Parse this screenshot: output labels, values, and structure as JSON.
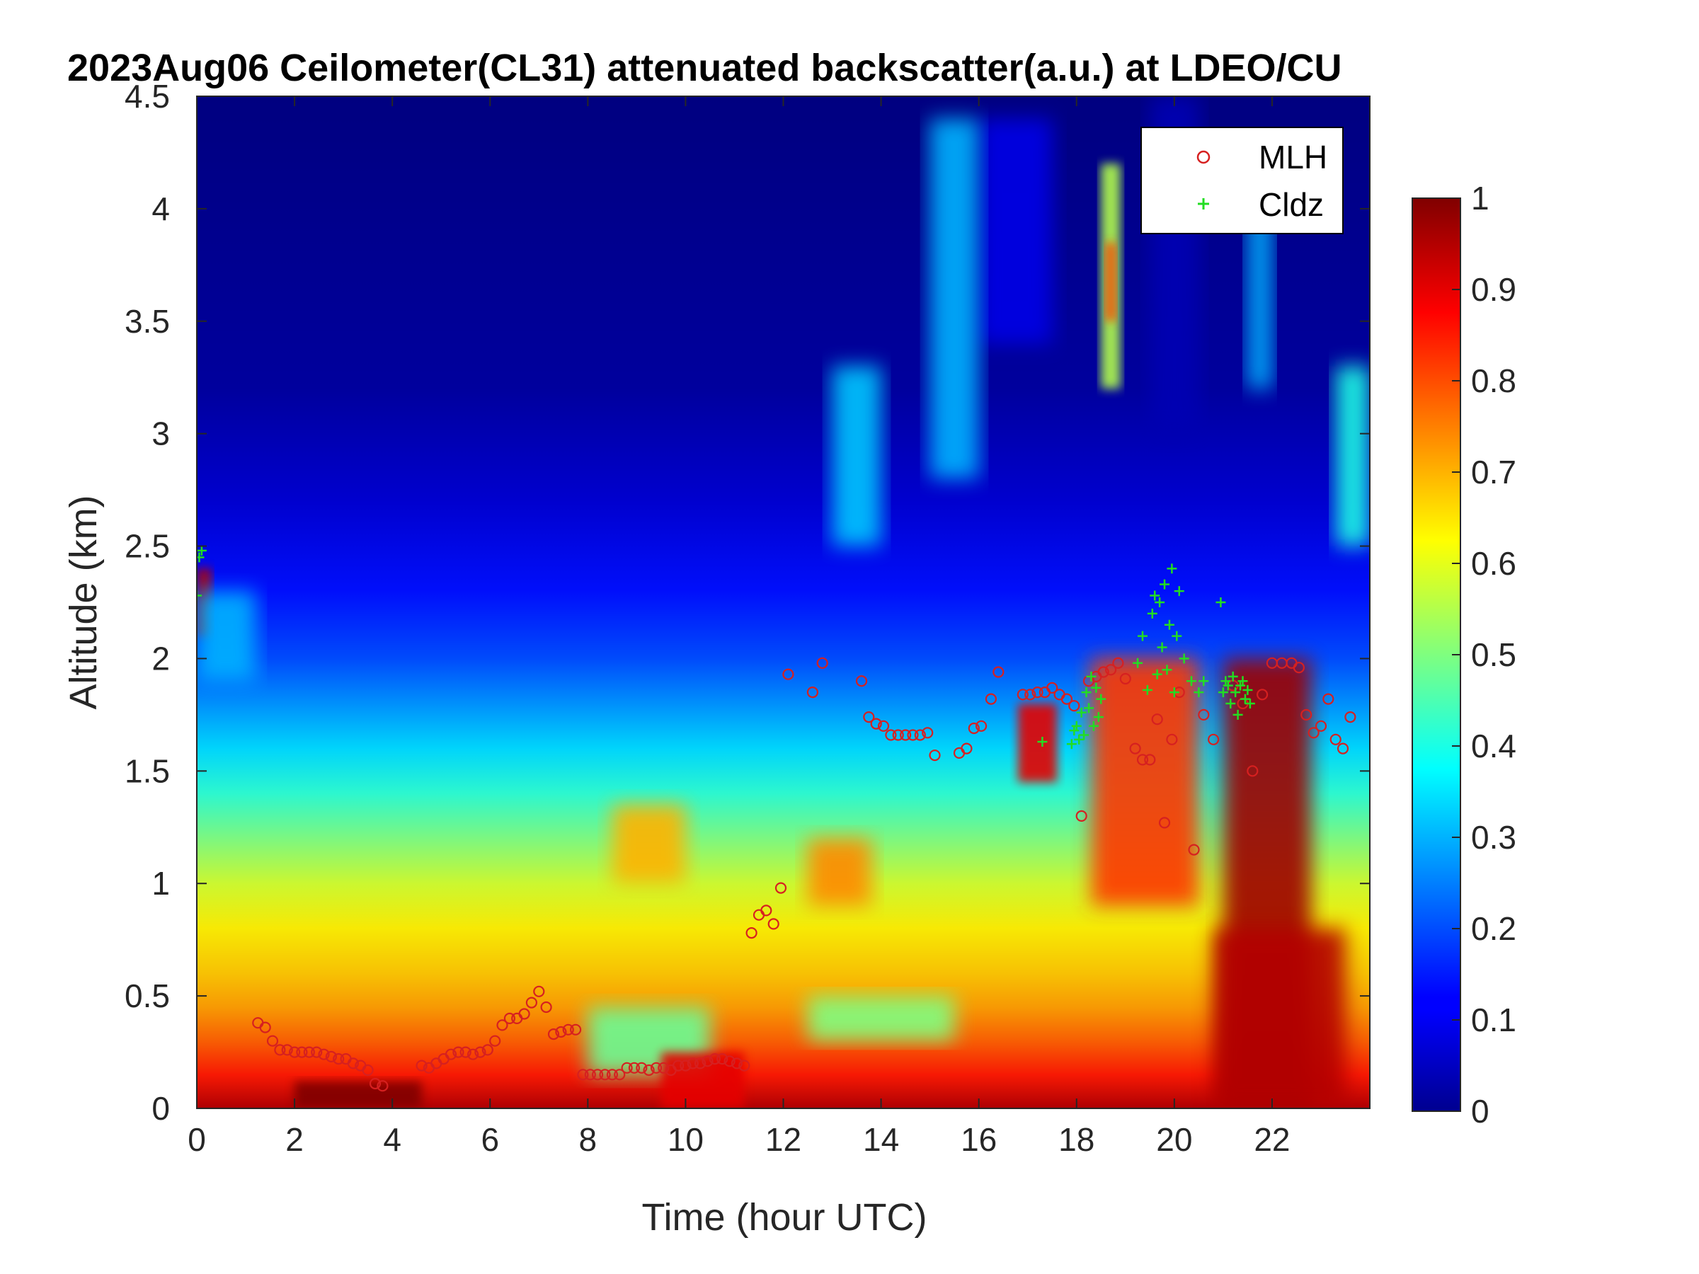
{
  "chart_data": {
    "type": "heatmap",
    "title": "2023Aug06 Ceilometer(CL31) attenuated backscatter(a.u.) at LDEO/CU",
    "xlabel": "Time (hour UTC)",
    "ylabel": "Altitude (km)",
    "xlim": [
      0,
      24
    ],
    "ylim": [
      0,
      4.5
    ],
    "xticks": [
      "0",
      "2",
      "4",
      "6",
      "8",
      "10",
      "12",
      "14",
      "16",
      "18",
      "20",
      "22"
    ],
    "yticks": [
      "0",
      "0.5",
      "1",
      "1.5",
      "2",
      "2.5",
      "3",
      "3.5",
      "4",
      "4.5"
    ],
    "colorbar": {
      "colormap": "jet",
      "range": [
        0,
        1
      ],
      "ticks": [
        "0",
        "0.1",
        "0.2",
        "0.3",
        "0.4",
        "0.5",
        "0.6",
        "0.7",
        "0.8",
        "0.9",
        "1"
      ]
    },
    "legend_placement": "top-right",
    "series": [
      {
        "name": "MLH",
        "marker": "circle",
        "color": "#d62020",
        "x": [
          1.25,
          1.4,
          1.55,
          1.7,
          1.85,
          2.0,
          2.15,
          2.3,
          2.45,
          2.6,
          2.75,
          2.9,
          3.05,
          3.2,
          3.35,
          3.5,
          3.65,
          3.8,
          4.6,
          4.75,
          4.9,
          5.05,
          5.2,
          5.35,
          5.5,
          5.65,
          5.8,
          5.95,
          6.1,
          6.25,
          6.4,
          6.55,
          6.7,
          6.85,
          7.0,
          7.15,
          7.3,
          7.45,
          7.6,
          7.75,
          7.9,
          8.05,
          8.2,
          8.35,
          8.5,
          8.65,
          8.8,
          8.95,
          9.1,
          9.25,
          9.4,
          9.55,
          9.7,
          9.85,
          10.0,
          10.15,
          10.3,
          10.45,
          10.6,
          10.75,
          10.9,
          11.05,
          11.2,
          11.35,
          11.5,
          11.65,
          11.8,
          11.95,
          12.1,
          12.6,
          12.8,
          13.6,
          13.75,
          13.9,
          14.05,
          14.2,
          14.35,
          14.5,
          14.65,
          14.8,
          14.95,
          15.1,
          15.6,
          15.75,
          15.9,
          16.05,
          16.25,
          16.4,
          16.9,
          17.05,
          17.2,
          17.35,
          17.5,
          17.65,
          17.8,
          17.95,
          18.1,
          18.25,
          18.4,
          18.55,
          18.7,
          18.85,
          19.0,
          19.2,
          19.35,
          19.5,
          19.65,
          19.8,
          19.95,
          20.1,
          20.4,
          20.6,
          20.8,
          21.2,
          21.4,
          21.6,
          21.8,
          22.0,
          22.2,
          22.4,
          22.55,
          22.7,
          22.85,
          23.0,
          23.15,
          23.3,
          23.45,
          23.6
        ],
        "y": [
          0.38,
          0.36,
          0.3,
          0.26,
          0.26,
          0.25,
          0.25,
          0.25,
          0.25,
          0.24,
          0.23,
          0.22,
          0.22,
          0.2,
          0.19,
          0.17,
          0.11,
          0.1,
          0.19,
          0.18,
          0.2,
          0.22,
          0.24,
          0.25,
          0.25,
          0.24,
          0.25,
          0.26,
          0.3,
          0.37,
          0.4,
          0.4,
          0.42,
          0.47,
          0.52,
          0.45,
          0.33,
          0.34,
          0.35,
          0.35,
          0.15,
          0.15,
          0.15,
          0.15,
          0.15,
          0.15,
          0.18,
          0.18,
          0.18,
          0.17,
          0.18,
          0.18,
          0.17,
          0.19,
          0.19,
          0.2,
          0.2,
          0.21,
          0.22,
          0.22,
          0.21,
          0.2,
          0.19,
          0.78,
          0.86,
          0.88,
          0.82,
          0.98,
          1.93,
          1.85,
          1.98,
          1.9,
          1.74,
          1.71,
          1.7,
          1.66,
          1.66,
          1.66,
          1.66,
          1.66,
          1.67,
          1.57,
          1.58,
          1.6,
          1.69,
          1.7,
          1.82,
          1.94,
          1.84,
          1.84,
          1.85,
          1.85,
          1.87,
          1.84,
          1.82,
          1.79,
          1.3,
          1.9,
          1.92,
          1.94,
          1.95,
          1.98,
          1.91,
          1.6,
          1.55,
          1.55,
          1.73,
          1.27,
          1.64,
          1.85,
          1.15,
          1.75,
          1.64,
          1.88,
          1.8,
          1.5,
          1.84,
          1.98,
          1.98,
          1.98,
          1.96,
          1.75,
          1.67,
          1.7,
          1.82,
          1.64,
          1.6,
          1.74
        ]
      },
      {
        "name": "Cldz",
        "marker": "plus",
        "color": "#22dd22",
        "x": [
          0.0,
          0.05,
          0.1,
          17.3,
          17.9,
          17.95,
          18.0,
          18.05,
          18.1,
          18.15,
          18.2,
          18.25,
          18.3,
          18.35,
          18.4,
          18.45,
          18.5,
          19.25,
          19.35,
          19.45,
          19.55,
          19.6,
          19.65,
          19.7,
          19.75,
          19.8,
          19.85,
          19.9,
          19.95,
          20.0,
          20.05,
          20.1,
          20.2,
          20.35,
          20.5,
          20.6,
          20.95,
          21.0,
          21.05,
          21.1,
          21.15,
          21.2,
          21.25,
          21.3,
          21.35,
          21.4,
          21.45,
          21.5,
          21.55
        ],
        "y": [
          2.28,
          2.45,
          2.48,
          1.63,
          1.62,
          1.68,
          1.7,
          1.64,
          1.76,
          1.66,
          1.85,
          1.78,
          1.92,
          1.7,
          1.87,
          1.74,
          1.82,
          1.98,
          2.1,
          1.86,
          2.2,
          2.28,
          1.93,
          2.25,
          2.05,
          2.33,
          1.95,
          2.15,
          2.4,
          1.85,
          2.1,
          2.3,
          2.0,
          1.9,
          1.85,
          1.9,
          2.25,
          1.85,
          1.9,
          1.88,
          1.8,
          1.92,
          1.85,
          1.75,
          1.88,
          1.9,
          1.82,
          1.86,
          1.8
        ]
      }
    ],
    "field_description": "blue background near 0 aloft; cyan to yellow aerosol layer from about 0.5 to 1.5 km; orange to red near surface below 0.4 km; dark red column from about 21 to 22.5 h up to 2 km"
  }
}
